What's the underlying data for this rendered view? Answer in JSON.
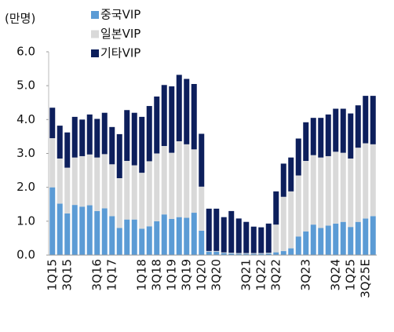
{
  "chart_data": {
    "type": "stacked_bar",
    "unit_label": "(만명)",
    "categories": [
      "1Q15",
      null,
      "3Q15",
      null,
      null,
      null,
      "3Q16",
      null,
      "1Q17",
      null,
      null,
      null,
      "1Q18",
      null,
      "3Q18",
      null,
      "1Q19",
      null,
      "3Q19",
      null,
      "1Q20",
      null,
      "3Q20",
      null,
      null,
      null,
      "3Q21",
      null,
      "1Q22",
      null,
      "3Q22",
      null,
      null,
      null,
      "3Q23",
      null,
      null,
      null,
      "3Q24",
      null,
      "1Q25",
      null,
      "3Q25E",
      null
    ],
    "series": [
      {
        "name": "중국VIP",
        "color": "#5b9bd5",
        "values": [
          2.0,
          1.52,
          1.23,
          1.48,
          1.43,
          1.47,
          1.3,
          1.38,
          1.15,
          0.8,
          1.05,
          1.05,
          0.78,
          0.85,
          1.0,
          1.2,
          1.07,
          1.12,
          1.1,
          1.25,
          0.72,
          0.1,
          0.1,
          0.06,
          0.05,
          0.04,
          0.04,
          0.04,
          0.04,
          0.05,
          0.08,
          0.12,
          0.2,
          0.55,
          0.7,
          0.9,
          0.8,
          0.87,
          0.93,
          0.98,
          0.83,
          0.98,
          1.08,
          1.15
        ]
      },
      {
        "name": "일본VIP",
        "color": "#d9d9d9",
        "values": [
          1.45,
          1.33,
          1.35,
          1.4,
          1.49,
          1.5,
          1.58,
          1.6,
          1.53,
          1.47,
          1.73,
          1.6,
          1.65,
          1.92,
          2.0,
          2.02,
          1.95,
          2.24,
          2.17,
          1.87,
          1.3,
          0.02,
          0.02,
          0.02,
          0.02,
          0.02,
          0.02,
          0.02,
          0.02,
          0.02,
          0.82,
          1.6,
          1.68,
          1.8,
          2.08,
          2.05,
          2.08,
          2.05,
          2.12,
          2.04,
          2.02,
          2.19,
          2.22,
          2.12
        ]
      },
      {
        "name": "기타VIP",
        "color": "#0d1f5c",
        "values": [
          0.9,
          0.97,
          1.04,
          1.2,
          1.08,
          1.18,
          1.14,
          1.22,
          1.1,
          1.3,
          1.5,
          1.55,
          1.65,
          1.63,
          1.68,
          1.8,
          1.96,
          1.96,
          1.93,
          1.93,
          1.56,
          1.25,
          1.25,
          1.04,
          1.23,
          1.02,
          0.92,
          0.78,
          0.76,
          0.86,
          0.98,
          0.98,
          1.0,
          1.09,
          1.14,
          1.1,
          1.17,
          1.23,
          1.27,
          1.3,
          1.33,
          1.25,
          1.4,
          1.43
        ]
      }
    ],
    "ylim": [
      0,
      6
    ],
    "yticks": [
      {
        "value": 0,
        "label": "0.0"
      },
      {
        "value": 1,
        "label": "1.0"
      },
      {
        "value": 2,
        "label": "2.0"
      },
      {
        "value": 3,
        "label": "3.0"
      },
      {
        "value": 4,
        "label": "4.0"
      },
      {
        "value": 5,
        "label": "5.0"
      },
      {
        "value": 6,
        "label": "6.0"
      }
    ],
    "legend": "top-left"
  }
}
